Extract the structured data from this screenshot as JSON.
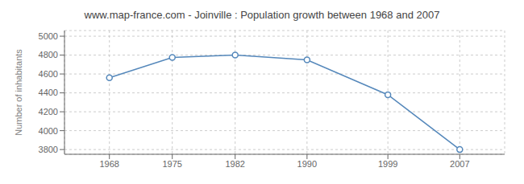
{
  "chart_data": {
    "type": "line",
    "title": "www.map-france.com - Joinville : Population growth between 1968 and 2007",
    "ylabel": "Number of inhabitants",
    "x": [
      1968,
      1975,
      1982,
      1990,
      1999,
      2007
    ],
    "values": [
      4560,
      4775,
      4800,
      4750,
      4380,
      3800
    ],
    "color": "#5588bb",
    "marker": "circle",
    "xlim": [
      1963,
      2012
    ],
    "xticks": [
      1968,
      1975,
      1982,
      1990,
      1999,
      2007
    ],
    "ylim": [
      3750,
      5060
    ],
    "yticks": [
      3800,
      4000,
      4200,
      4400,
      4600,
      4800,
      5000
    ],
    "grid": true
  }
}
